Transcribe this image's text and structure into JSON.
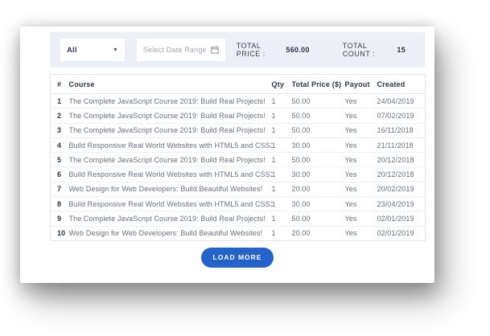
{
  "filter_bar": {
    "category_select": {
      "value": "All"
    },
    "date_range": {
      "placeholder": "Select Date Range"
    },
    "total_price": {
      "label": "TOTAL PRICE :",
      "value": "560.00"
    },
    "total_count": {
      "label": "TOTAL COUNT :",
      "value": "15"
    }
  },
  "table": {
    "columns": [
      "#",
      "Course",
      "Qty",
      "Total Price ($)",
      "Payout",
      "Created"
    ],
    "rows": [
      [
        "1",
        "The Complete JavaScript Course 2019: Build Real Projects!",
        "1",
        "50.00",
        "Yes",
        "24/04/2019"
      ],
      [
        "2",
        "The Complete JavaScript Course 2019: Build Real Projects!",
        "1",
        "50.00",
        "Yes",
        "07/02/2019"
      ],
      [
        "3",
        "The Complete JavaScript Course 2019: Build Real Projects!",
        "1",
        "50.00",
        "Yes",
        "16/11/2018"
      ],
      [
        "4",
        "Build Responsive Real World Websites with HTML5 and CSS3",
        "1",
        "30.00",
        "Yes",
        "21/11/2018"
      ],
      [
        "5",
        "The Complete JavaScript Course 2019: Build Real Projects!",
        "1",
        "50.00",
        "Yes",
        "20/12/2018"
      ],
      [
        "6",
        "Build Responsive Real World Websites with HTML5 and CSS3",
        "1",
        "30.00",
        "Yes",
        "20/12/2018"
      ],
      [
        "7",
        "Web Design for Web Developers: Build Beautiful Websites!",
        "1",
        "20.00",
        "Yes",
        "20/02/2019"
      ],
      [
        "8",
        "Build Responsive Real World Websites with HTML5 and CSS3",
        "1",
        "30.00",
        "Yes",
        "23/04/2019"
      ],
      [
        "9",
        "The Complete JavaScript Course 2019: Build Real Projects!",
        "1",
        "50.00",
        "Yes",
        "02/01/2019"
      ],
      [
        "10",
        "Web Design for Web Developers: Build Beautiful Websites!",
        "1",
        "20.00",
        "Yes",
        "02/01/2019"
      ]
    ]
  },
  "load_more": {
    "label": "LOAD MORE"
  },
  "icons": {
    "select_caret": "caret-down-icon",
    "date_calendar": "calendar-icon"
  },
  "colors": {
    "accent_blue": "#2563cb",
    "filter_bar_bg": "#ecf0f6",
    "table_border": "#e3e6ee",
    "header_text": "#2f3349",
    "cell_text": "#696e80"
  }
}
